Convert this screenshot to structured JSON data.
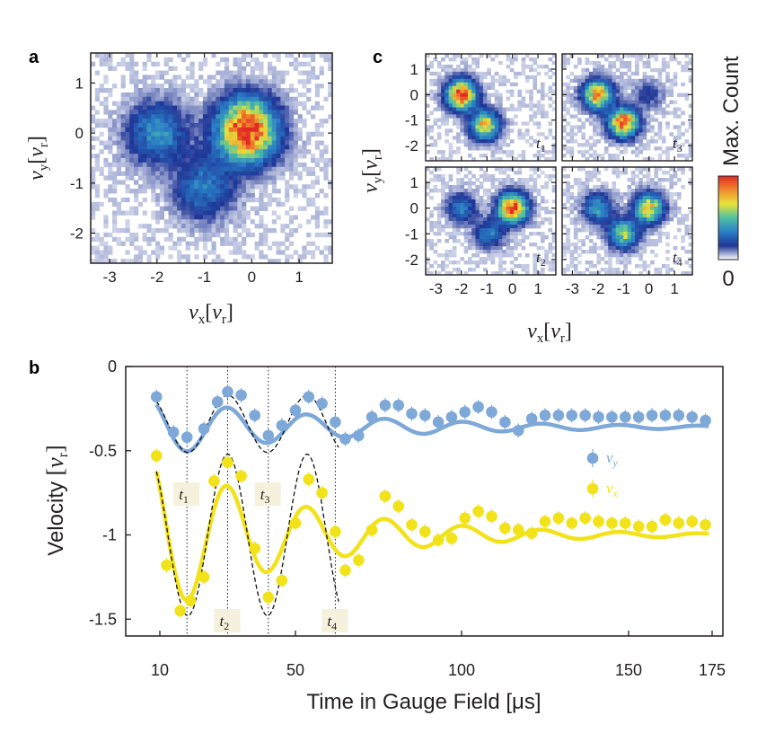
{
  "panels": {
    "a": "a",
    "b": "b",
    "c": "c"
  },
  "panel_a": {
    "x_ticks": [
      "-3",
      "-2",
      "-1",
      "0",
      "1"
    ],
    "y_ticks": [
      "1",
      "0",
      "-1",
      "-2"
    ],
    "xlabel_var": "v",
    "xlabel_sub": "x",
    "xlabel_unit": "v",
    "xlabel_unit_sub": "r",
    "ylabel_var": "v",
    "ylabel_sub": "y",
    "ylabel_unit": "v",
    "ylabel_unit_sub": "r",
    "xlim": [
      -3.4,
      1.7
    ],
    "ylim": [
      -2.6,
      1.6
    ]
  },
  "panel_c": {
    "x_ticks": [
      "-3",
      "-2",
      "-1",
      "0",
      "1"
    ],
    "y_ticks": [
      "1",
      "0",
      "-1",
      "-2"
    ],
    "subplot_labels": [
      {
        "base": "t",
        "sub": "1"
      },
      {
        "base": "t",
        "sub": "3"
      },
      {
        "base": "t",
        "sub": "2"
      },
      {
        "base": "t",
        "sub": "4"
      }
    ],
    "colorbar_max": "Max. Count",
    "colorbar_min": "0",
    "colorbar_colors": [
      "#ffffff",
      "#1f3596",
      "#2a7fc8",
      "#4ec0a2",
      "#e9e33a",
      "#f08a2e",
      "#e22b23"
    ]
  },
  "chart_data": [
    {
      "type": "heatmap",
      "panel": "a",
      "description_free": true,
      "blobs": [
        {
          "vx": -0.1,
          "vy": 0.05,
          "peak": 1.0
        },
        {
          "vx": -2.0,
          "vy": 0.0,
          "peak": 0.35
        },
        {
          "vx": -1.0,
          "vy": -1.1,
          "peak": 0.3
        }
      ],
      "xlim": [
        -3.4,
        1.7
      ],
      "ylim": [
        -2.6,
        1.6
      ]
    },
    {
      "type": "line",
      "panel": "b",
      "xlabel": "Time in Gauge Field [μs]",
      "ylabel": "Velocity",
      "ylabel_unit": "v",
      "ylabel_unit_sub": "r",
      "x_ticks": [
        "10",
        "50",
        "100",
        "150",
        "175"
      ],
      "x_tick_values": [
        10,
        50,
        100,
        150,
        175
      ],
      "y_ticks": [
        "0",
        "-0.5",
        "-1",
        "-1.5"
      ],
      "y_tick_values": [
        0,
        -0.5,
        -1,
        -1.5
      ],
      "xlim": [
        0,
        182
      ],
      "ylim": [
        -1.6,
        0.0
      ],
      "legend_position": "right",
      "time_markers": [
        {
          "t": 18,
          "base": "t",
          "sub": "1"
        },
        {
          "t": 30,
          "base": "t",
          "sub": "2"
        },
        {
          "t": 42,
          "base": "t",
          "sub": "3"
        },
        {
          "t": 62,
          "base": "t",
          "sub": "4"
        }
      ],
      "series": [
        {
          "name": "v",
          "name_sub": "y",
          "color": "#7ea8d8",
          "points": [
            [
              9,
              -0.18
            ],
            [
              14,
              -0.39
            ],
            [
              18,
              -0.42
            ],
            [
              23,
              -0.37
            ],
            [
              27,
              -0.21
            ],
            [
              30,
              -0.15
            ],
            [
              34,
              -0.17
            ],
            [
              38,
              -0.29
            ],
            [
              42,
              -0.41
            ],
            [
              46,
              -0.35
            ],
            [
              50,
              -0.26
            ],
            [
              54,
              -0.18
            ],
            [
              58,
              -0.22
            ],
            [
              62,
              -0.33
            ],
            [
              65,
              -0.43
            ],
            [
              69,
              -0.41
            ],
            [
              73,
              -0.3
            ],
            [
              77,
              -0.23
            ],
            [
              81,
              -0.23
            ],
            [
              85,
              -0.28
            ],
            [
              89,
              -0.29
            ],
            [
              93,
              -0.33
            ],
            [
              97,
              -0.3
            ],
            [
              101,
              -0.27
            ],
            [
              105,
              -0.24
            ],
            [
              109,
              -0.27
            ],
            [
              113,
              -0.33
            ],
            [
              117,
              -0.38
            ],
            [
              121,
              -0.31
            ],
            [
              125,
              -0.29
            ],
            [
              129,
              -0.29
            ],
            [
              133,
              -0.29
            ],
            [
              137,
              -0.29
            ],
            [
              141,
              -0.3
            ],
            [
              145,
              -0.3
            ],
            [
              149,
              -0.3
            ],
            [
              153,
              -0.3
            ],
            [
              157,
              -0.29
            ],
            [
              161,
              -0.29
            ],
            [
              165,
              -0.29
            ],
            [
              169,
              -0.3
            ],
            [
              173,
              -0.32
            ]
          ],
          "fit": {
            "offset": -0.36,
            "amp": 0.17,
            "tau": 55,
            "period": 23.5,
            "phase_t": 30
          },
          "free_fit": {
            "offset": -0.34,
            "amp": 0.17,
            "period": 23.5,
            "phase_t": 30,
            "t_end": 63
          }
        },
        {
          "name": "v",
          "name_sub": "x",
          "color": "#f2e21a",
          "points": [
            [
              9,
              -0.53
            ],
            [
              12,
              -1.18
            ],
            [
              16,
              -1.45
            ],
            [
              19,
              -1.39
            ],
            [
              23,
              -1.25
            ],
            [
              26,
              -0.68
            ],
            [
              30,
              -0.57
            ],
            [
              34,
              -0.65
            ],
            [
              38,
              -1.08
            ],
            [
              42,
              -1.37
            ],
            [
              46,
              -1.27
            ],
            [
              50,
              -0.93
            ],
            [
              54,
              -0.67
            ],
            [
              58,
              -0.75
            ],
            [
              62,
              -0.98
            ],
            [
              65,
              -1.21
            ],
            [
              69,
              -1.15
            ],
            [
              73,
              -0.97
            ],
            [
              77,
              -0.77
            ],
            [
              81,
              -0.83
            ],
            [
              85,
              -0.94
            ],
            [
              89,
              -0.98
            ],
            [
              93,
              -1.03
            ],
            [
              97,
              -1.02
            ],
            [
              101,
              -0.9
            ],
            [
              105,
              -0.86
            ],
            [
              109,
              -0.89
            ],
            [
              113,
              -0.96
            ],
            [
              117,
              -0.97
            ],
            [
              121,
              -0.99
            ],
            [
              125,
              -0.92
            ],
            [
              129,
              -0.9
            ],
            [
              133,
              -0.93
            ],
            [
              137,
              -0.9
            ],
            [
              141,
              -0.92
            ],
            [
              145,
              -0.93
            ],
            [
              149,
              -0.93
            ],
            [
              153,
              -0.95
            ],
            [
              157,
              -0.95
            ],
            [
              161,
              -0.91
            ],
            [
              165,
              -0.93
            ],
            [
              169,
              -0.92
            ],
            [
              173,
              -0.94
            ]
          ],
          "fit": {
            "offset": -1.0,
            "amp": 0.48,
            "tau": 42,
            "period": 23.5,
            "phase_t": 30
          },
          "free_fit": {
            "offset": -1.0,
            "amp": 0.48,
            "period": 23.5,
            "phase_t": 30,
            "t_end": 63
          }
        }
      ]
    },
    {
      "type": "heatmap",
      "panel": "c",
      "subplots": [
        {
          "label_sub": "1",
          "blobs": [
            {
              "vx": -2.0,
              "vy": 0.0,
              "peak": 1.0
            },
            {
              "vx": -1.1,
              "vy": -1.2,
              "peak": 0.7
            }
          ]
        },
        {
          "label_sub": "3",
          "blobs": [
            {
              "vx": -2.0,
              "vy": 0.0,
              "peak": 0.8
            },
            {
              "vx": -1.0,
              "vy": -1.1,
              "peak": 0.9
            },
            {
              "vx": 0.0,
              "vy": 0.0,
              "peak": 0.15
            }
          ]
        },
        {
          "label_sub": "2",
          "blobs": [
            {
              "vx": -2.0,
              "vy": 0.0,
              "peak": 0.3
            },
            {
              "vx": -0.9,
              "vy": -1.0,
              "peak": 0.3
            },
            {
              "vx": 0.0,
              "vy": 0.0,
              "peak": 0.95
            }
          ]
        },
        {
          "label_sub": "4",
          "blobs": [
            {
              "vx": -2.0,
              "vy": 0.0,
              "peak": 0.4
            },
            {
              "vx": -1.0,
              "vy": -1.0,
              "peak": 0.55
            },
            {
              "vx": 0.0,
              "vy": 0.0,
              "peak": 0.7
            }
          ]
        }
      ],
      "xlim": [
        -3.4,
        1.7
      ],
      "ylim": [
        -2.6,
        1.6
      ]
    }
  ]
}
